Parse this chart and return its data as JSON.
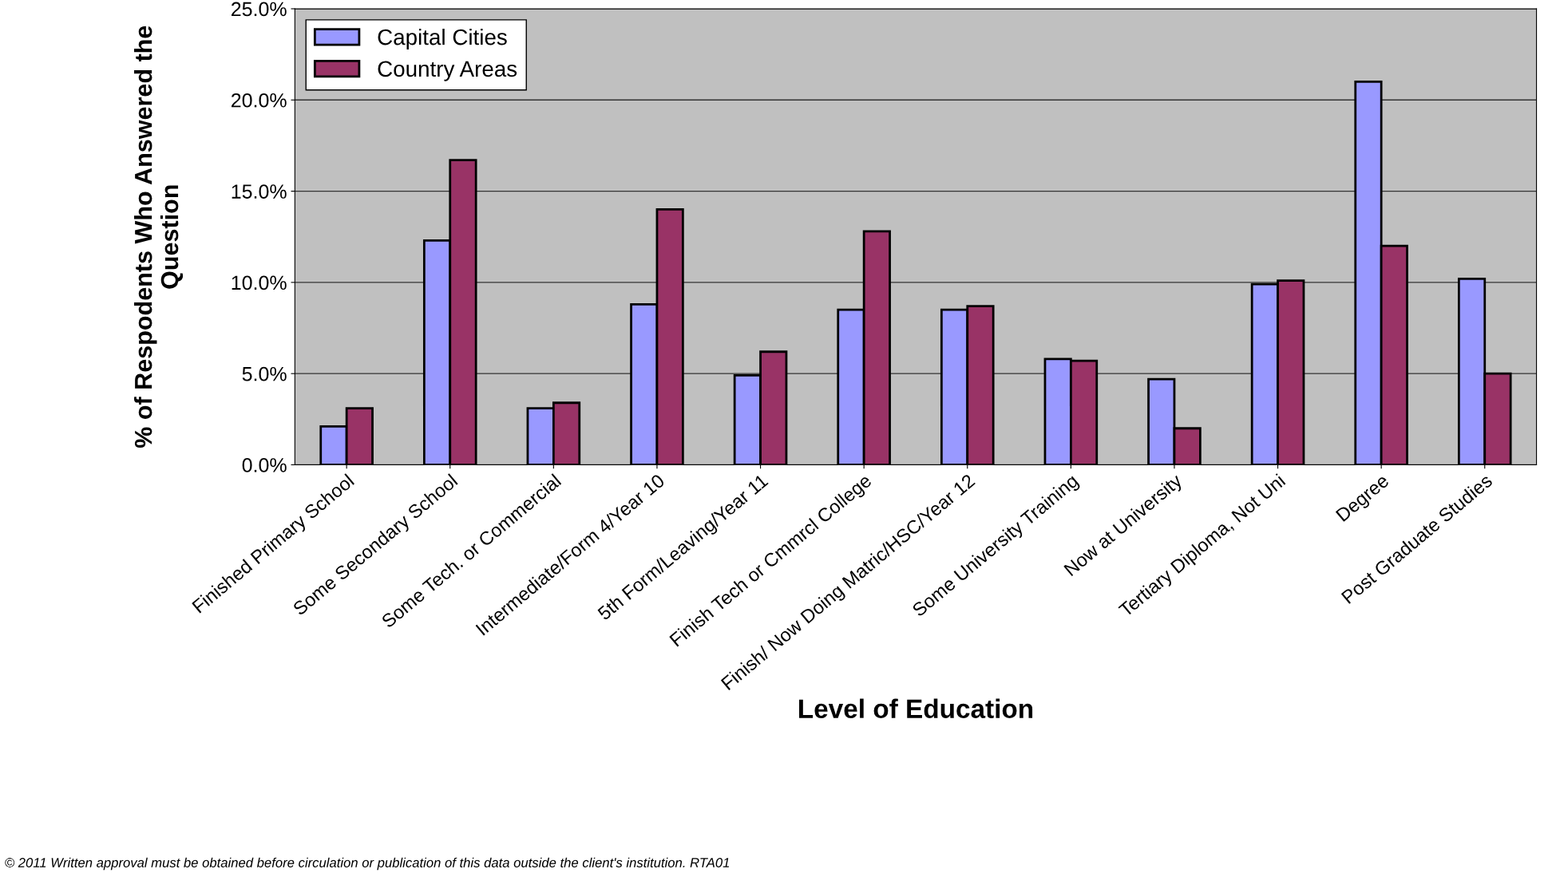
{
  "chart_data": {
    "type": "bar",
    "xlabel": "Level of Education",
    "ylabel": "% of Respodents Who Answered the Question",
    "categories": [
      "Finished Primary School",
      "Some Secondary School",
      "Some Tech. or Commercial",
      "Intermediate/Form 4/Year 10",
      "5th Form/Leaving/Year 11",
      "Finish Tech or Cmmrcl College",
      "Finish/ Now Doing Matric/HSC/Year 12",
      "Some University Training",
      "Now at University",
      "Tertiary Diploma, Not Uni",
      "Degree",
      "Post Graduate Studies"
    ],
    "series": [
      {
        "name": "Capital Cities",
        "color": "#9999ff",
        "values": [
          2.1,
          12.3,
          3.1,
          8.8,
          4.9,
          8.5,
          8.5,
          5.8,
          4.7,
          9.9,
          21.0,
          10.2
        ]
      },
      {
        "name": "Country Areas",
        "color": "#993366",
        "values": [
          3.1,
          16.7,
          3.4,
          14.0,
          6.2,
          12.8,
          8.7,
          5.7,
          2.0,
          10.1,
          12.0,
          5.0
        ]
      }
    ],
    "ylim": [
      0,
      25
    ],
    "yticks": [
      {
        "value": 0,
        "label": "0.0%"
      },
      {
        "value": 5,
        "label": "5.0%"
      },
      {
        "value": 10,
        "label": "10.0%"
      },
      {
        "value": 15,
        "label": "15.0%"
      },
      {
        "value": 20,
        "label": "20.0%"
      },
      {
        "value": 25,
        "label": "25.0%"
      }
    ],
    "grid": "y",
    "legend": "top left",
    "annotations": [
      "© 2011 Written approval must be obtained before circulation or publication of this data outside the client's institution. RTA01"
    ]
  }
}
